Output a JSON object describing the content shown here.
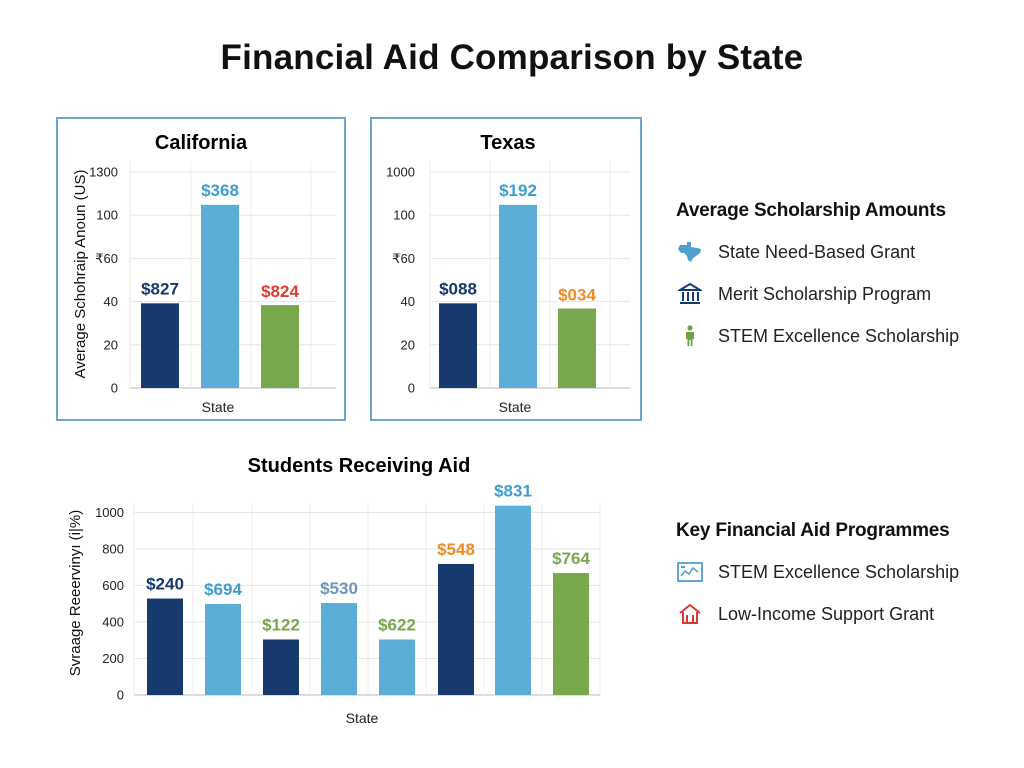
{
  "title": "Financial Aid Comparison by State",
  "colors": {
    "dark_blue": "#163a6e",
    "light_blue": "#5aaed8",
    "green": "#78a84c",
    "red": "#e03a33",
    "orange": "#ef8c22",
    "frame": "#6fa7c8"
  },
  "chart_data": [
    {
      "type": "bar",
      "title": "California",
      "xlabel": "State",
      "ylabel": "Average Schohraip Anoun (US)",
      "y_ticks": [
        "0",
        "20",
        "40",
        "₹60",
        "100",
        "1300"
      ],
      "bars": [
        {
          "label": "$827",
          "value": 49,
          "color": "#163a6e",
          "label_color": "#163a6e"
        },
        {
          "label": "$368",
          "value": 106,
          "color": "#5aaed8",
          "label_color": "#3e9fcf"
        },
        {
          "label": "$824",
          "value": 48,
          "color": "#78a84c",
          "label_color": "#e03a33"
        }
      ]
    },
    {
      "type": "bar",
      "title": "Texas",
      "xlabel": "State",
      "ylabel": "",
      "y_ticks": [
        "0",
        "20",
        "40",
        "₹60",
        "100",
        "1000"
      ],
      "bars": [
        {
          "label": "$088",
          "value": 49,
          "color": "#163a6e",
          "label_color": "#163a6e"
        },
        {
          "label": "$192",
          "value": 106,
          "color": "#5aaed8",
          "label_color": "#3e9fcf"
        },
        {
          "label": "$034",
          "value": 46,
          "color": "#78a84c",
          "label_color": "#ef8c22"
        }
      ]
    },
    {
      "type": "bar",
      "title": "Students Receiving Aid",
      "xlabel": "State",
      "ylabel": "Svraage Reeervinyı (i|%)",
      "y_ticks": [
        "0",
        "200",
        "400",
        "600",
        "800",
        "1000"
      ],
      "ylim": [
        0,
        1000
      ],
      "bars": [
        {
          "label": "$240",
          "value": 530,
          "color": "#163a6e",
          "label_color": "#163a6e"
        },
        {
          "label": "$694",
          "value": 500,
          "color": "#5aaed8",
          "label_color": "#3e9fcf"
        },
        {
          "label": "$122",
          "value": 305,
          "color": "#163a6e",
          "label_color": "#78a84c"
        },
        {
          "label": "$530",
          "value": 505,
          "color": "#5aaed8",
          "label_color": "#6f95bd"
        },
        {
          "label": "$622",
          "value": 305,
          "color": "#5aaed8",
          "label_color": "#78a84c"
        },
        {
          "label": "$548",
          "value": 720,
          "color": "#163a6e",
          "label_color": "#ef8c22"
        },
        {
          "label": "$831",
          "value": 1040,
          "color": "#5aaed8",
          "label_color": "#3e9fcf"
        },
        {
          "label": "$764",
          "value": 670,
          "color": "#78a84c",
          "label_color": "#78a84c"
        }
      ]
    }
  ],
  "legend_avg": {
    "title": "Average Scholarship Amounts",
    "items": [
      {
        "label": "State Need-Based Grant",
        "icon": "texas-map-icon"
      },
      {
        "label": "Merit Scholarship Program",
        "icon": "bank-building-icon"
      },
      {
        "label": "STEM Excellence Scholarship",
        "icon": "person-icon"
      }
    ]
  },
  "legend_key": {
    "title": "Key Financial Aid Programmes",
    "items": [
      {
        "label": "STEM Excellence Scholarship",
        "icon": "dashboard-chart-icon"
      },
      {
        "label": "Low-Income Support Grant",
        "icon": "house-icon"
      }
    ]
  }
}
